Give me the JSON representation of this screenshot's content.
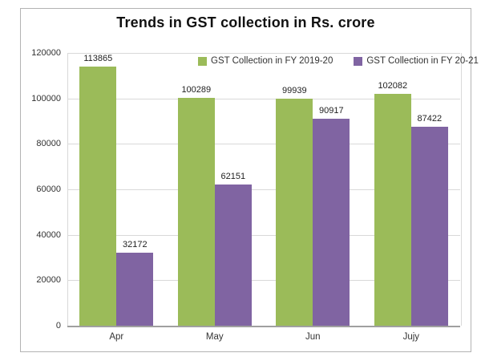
{
  "title": "Trends in GST collection in Rs. crore",
  "legend": {
    "items": [
      {
        "label": "GST Collection in FY 2019-20",
        "color": "#9bbb59"
      },
      {
        "label": "GST Collection in FY 20-21",
        "color": "#8064a2"
      }
    ]
  },
  "chart_data": {
    "type": "bar",
    "title": "Trends in GST collection in Rs. crore",
    "categories": [
      "Apr",
      "May",
      "Jun",
      "Jujy"
    ],
    "series": [
      {
        "name": "GST Collection in FY 2019-20",
        "color": "#9bbb59",
        "values": [
          113865,
          100289,
          99939,
          102082
        ]
      },
      {
        "name": "GST Collection in FY 20-21",
        "color": "#8064a2",
        "values": [
          32172,
          62151,
          90917,
          87422
        ]
      }
    ],
    "ylim": [
      0,
      120000
    ],
    "yticks": [
      0,
      20000,
      40000,
      60000,
      80000,
      100000,
      120000
    ],
    "ylabel": "",
    "xlabel": "",
    "grid": true,
    "data_labels": true,
    "legend_position": "top-inside",
    "colors": {
      "grid": "#d9d9d9",
      "axis": "#a0a0a0",
      "text": "#333333"
    }
  }
}
